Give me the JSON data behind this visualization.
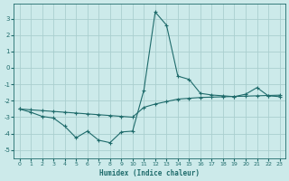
{
  "xlabel": "Humidex (Indice chaleur)",
  "background_color": "#cceaea",
  "grid_color": "#aacfcf",
  "line_color": "#1f6b6b",
  "xlim": [
    -0.5,
    23.5
  ],
  "ylim": [
    -5.5,
    3.9
  ],
  "yticks": [
    -5,
    -4,
    -3,
    -2,
    -1,
    0,
    1,
    2,
    3
  ],
  "xticks": [
    0,
    1,
    2,
    3,
    4,
    5,
    6,
    7,
    8,
    9,
    10,
    11,
    12,
    13,
    14,
    15,
    16,
    17,
    18,
    19,
    20,
    21,
    22,
    23
  ],
  "line1_x": [
    0,
    1,
    2,
    3,
    4,
    5,
    6,
    7,
    8,
    9,
    10,
    11,
    12,
    13,
    14,
    15,
    16,
    17,
    18,
    19,
    20,
    21,
    22,
    23
  ],
  "line1_y": [
    -2.5,
    -2.7,
    -2.95,
    -3.05,
    -3.55,
    -4.25,
    -3.85,
    -4.4,
    -4.55,
    -3.9,
    -3.85,
    -1.35,
    3.4,
    2.6,
    -0.5,
    -0.7,
    -1.55,
    -1.65,
    -1.7,
    -1.75,
    -1.6,
    -1.2,
    -1.7,
    -1.75
  ],
  "line2_x": [
    0,
    1,
    2,
    3,
    4,
    5,
    6,
    7,
    8,
    9,
    10,
    11,
    12,
    13,
    14,
    15,
    16,
    17,
    18,
    19,
    20,
    21,
    22,
    23
  ],
  "line2_y": [
    -2.5,
    -2.55,
    -2.6,
    -2.65,
    -2.7,
    -2.75,
    -2.8,
    -2.85,
    -2.9,
    -2.95,
    -3.0,
    -2.4,
    -2.2,
    -2.05,
    -1.9,
    -1.85,
    -1.8,
    -1.78,
    -1.76,
    -1.74,
    -1.72,
    -1.7,
    -1.68,
    -1.66
  ]
}
